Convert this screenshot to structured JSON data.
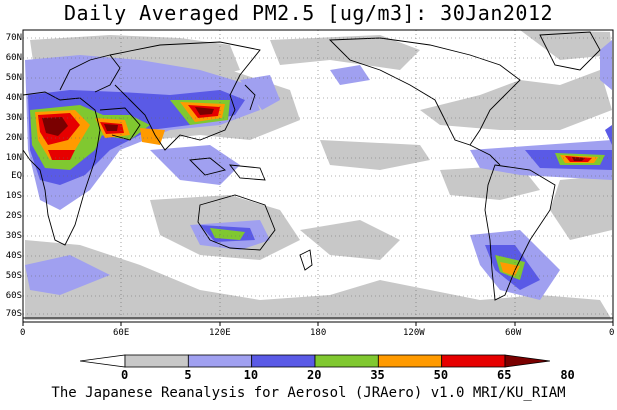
{
  "title": "Daily Averaged PM2.5 [ug/m3]: 30Jan2012",
  "footer": "The Japanese Reanalysis for Aerosol (JRAero) v1.0 MRI/KU_RIAM",
  "map": {
    "lat_labels": [
      "70N",
      "60N",
      "50N",
      "40N",
      "30N",
      "20N",
      "10N",
      "EQ",
      "10S",
      "20S",
      "30S",
      "40S",
      "50S",
      "60S",
      "70S"
    ],
    "lon_labels": [
      "0",
      "60E",
      "120E",
      "180",
      "120W",
      "60W",
      "0"
    ],
    "extent": {
      "lon": [
        0,
        360
      ],
      "lat": [
        -75,
        75
      ]
    }
  },
  "legend": {
    "ticks": [
      "0",
      "5",
      "10",
      "20",
      "35",
      "50",
      "65",
      "80"
    ],
    "colors": [
      "#ffffff",
      "#c8c8c8",
      "#a0a0f0",
      "#5a5ae6",
      "#80c830",
      "#ff9a00",
      "#e60000",
      "#7a0000"
    ]
  },
  "colors": {
    "background": "#ffffff",
    "band_low": "#c8c8c8",
    "band_lightblue": "#a0a0f0",
    "band_blue": "#5a5ae6",
    "band_green": "#80c830",
    "band_orange": "#ff9a00",
    "band_red": "#e60000",
    "band_darkred": "#7a0000",
    "coast": "#000000",
    "grid": "#666666"
  }
}
